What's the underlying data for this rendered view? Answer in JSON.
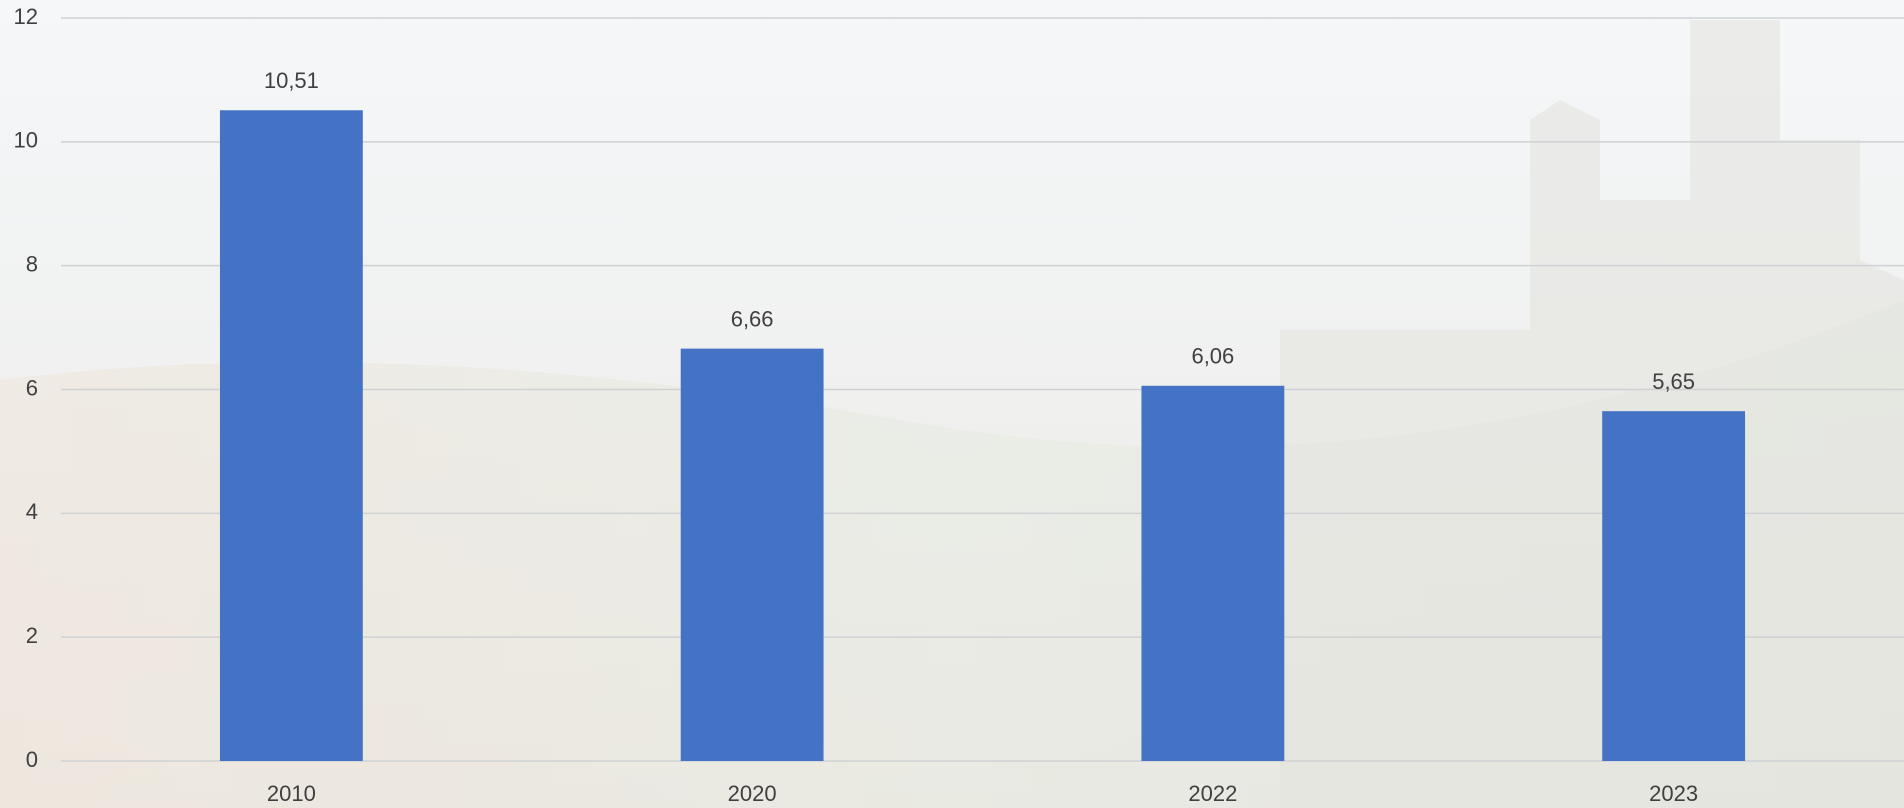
{
  "chart_data": {
    "type": "bar",
    "categories": [
      "2010",
      "2020",
      "2022",
      "2023"
    ],
    "values": [
      10.51,
      6.66,
      6.06,
      5.65
    ],
    "value_labels": [
      "10,51",
      "6,66",
      "6,06",
      "5,65"
    ],
    "color": "#4472c4",
    "ylim": [
      0,
      12
    ],
    "yticks": [
      0,
      2,
      4,
      6,
      8,
      10,
      12
    ],
    "grid": true
  }
}
